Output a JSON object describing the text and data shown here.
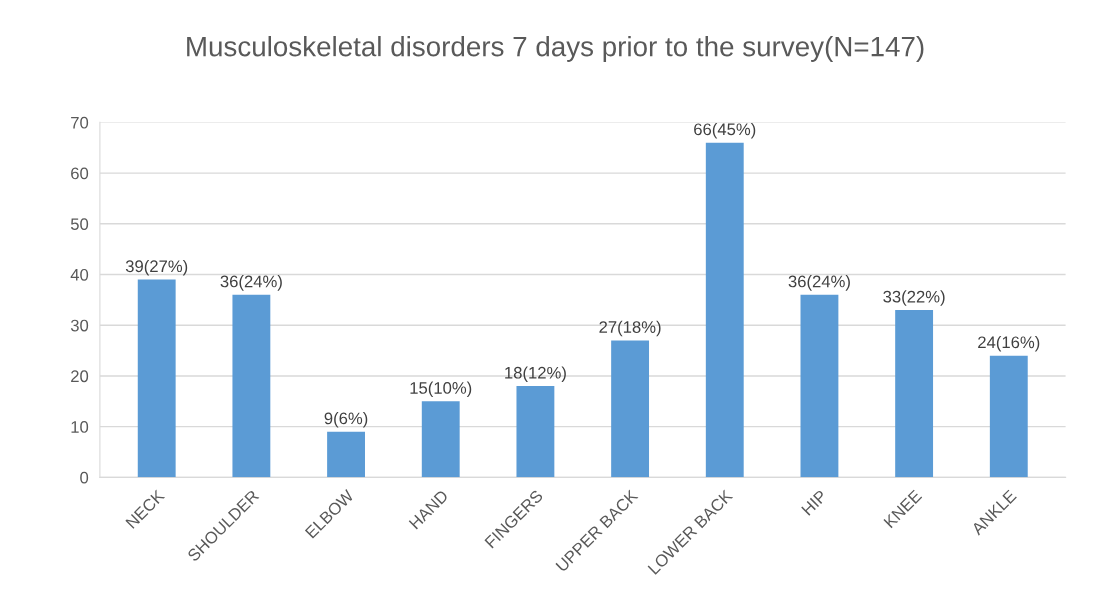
{
  "chart_data": {
    "type": "bar",
    "title": "Musculoskeletal disorders 7 days prior to the survey(N=147)",
    "categories": [
      "NECK",
      "SHOULDER",
      "ELBOW",
      "HAND",
      "FINGERS",
      "UPPER BACK",
      "LOWER BACK",
      "HIP",
      "KNEE",
      "ANKLE"
    ],
    "values": [
      39,
      36,
      9,
      15,
      18,
      27,
      66,
      36,
      33,
      24
    ],
    "value_labels": [
      "39(27%)",
      "36(24%)",
      "9(6%)",
      "15(10%)",
      "18(12%)",
      "27(18%)",
      "66(45%)",
      "36(24%)",
      "33(22%)",
      "24(16%)"
    ],
    "color": "#5b9bd5",
    "ylim": [
      0,
      70
    ],
    "yticks": [
      0,
      10,
      20,
      30,
      40,
      50,
      60,
      70
    ],
    "grid": "y"
  }
}
